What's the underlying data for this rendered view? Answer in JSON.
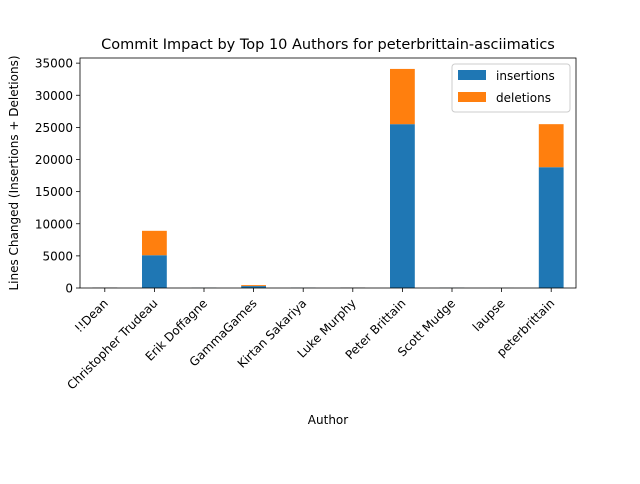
{
  "chart_data": {
    "type": "bar",
    "stacked": true,
    "title": "Commit Impact by Top 10 Authors for peterbrittain-asciimatics",
    "xlabel": "Author",
    "ylabel": "Lines Changed (Insertions + Deletions)",
    "categories": [
      "!!Dean",
      "Christopher Trudeau",
      "Erik Doffagne",
      "GammaGames",
      "Kirtan Sakariya",
      "Luke Murphy",
      "Peter Brittain",
      "Scott Mudge",
      "laupse",
      "peterbrittain"
    ],
    "series": [
      {
        "name": "insertions",
        "color": "#1f77b4",
        "values": [
          60,
          5100,
          40,
          300,
          40,
          60,
          25500,
          40,
          10,
          18800
        ]
      },
      {
        "name": "deletions",
        "color": "#ff7f0e",
        "values": [
          20,
          3800,
          10,
          150,
          10,
          20,
          8600,
          10,
          5,
          6700
        ]
      }
    ],
    "ylim": [
      0,
      35800
    ],
    "yticks": [
      0,
      5000,
      10000,
      15000,
      20000,
      25000,
      30000,
      35000
    ],
    "ytick_labels": [
      "0",
      "5000",
      "10000",
      "15000",
      "20000",
      "25000",
      "30000",
      "35000"
    ],
    "grid": false,
    "legend_position": "top-right"
  }
}
